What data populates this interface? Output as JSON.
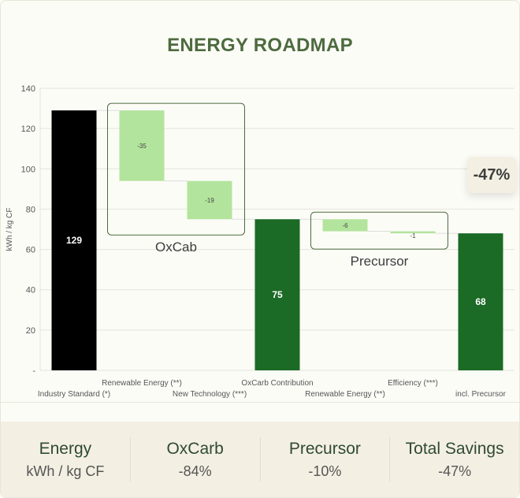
{
  "title": "ENERGY ROADMAP",
  "badge": "-47%",
  "chart_data": {
    "type": "bar",
    "subtype": "waterfall",
    "title": "ENERGY ROADMAP",
    "ylabel": "kWh / kg CF",
    "xlabel": "",
    "ylim": [
      0,
      140
    ],
    "yticks": [
      {
        "v": 0,
        "label": "-"
      },
      {
        "v": 20,
        "label": "20"
      },
      {
        "v": 40,
        "label": "40"
      },
      {
        "v": 60,
        "label": "60"
      },
      {
        "v": 80,
        "label": "80"
      },
      {
        "v": 100,
        "label": "100"
      },
      {
        "v": 120,
        "label": "120"
      },
      {
        "v": 140,
        "label": "140"
      }
    ],
    "grid": true,
    "bars": [
      {
        "category": "Industry Standard (*)",
        "kind": "total",
        "start": 0,
        "end": 129,
        "label": "129",
        "color": "#000000"
      },
      {
        "category": "Renewable Energy (**)",
        "kind": "delta",
        "start": 129,
        "end": 94,
        "label": "-35",
        "color": "#b3e49d"
      },
      {
        "category": "New Technology (***)",
        "kind": "delta",
        "start": 94,
        "end": 75,
        "label": "-19",
        "color": "#b3e49d"
      },
      {
        "category": "OxCarb Contribution",
        "kind": "total",
        "start": 0,
        "end": 75,
        "label": "75",
        "color": "#1b6a25"
      },
      {
        "category": "Renewable Energy (**)",
        "kind": "delta",
        "start": 75,
        "end": 69,
        "label": "-6",
        "color": "#b3e49d"
      },
      {
        "category": "Efficiency (***)",
        "kind": "delta",
        "start": 69,
        "end": 68,
        "label": "-1",
        "color": "#b3e49d"
      },
      {
        "category": "incl. Precursor",
        "kind": "total",
        "start": 0,
        "end": 68,
        "label": "68",
        "color": "#1b6a25"
      }
    ],
    "groups": [
      {
        "label": "OxCab",
        "from": 1,
        "to": 2
      },
      {
        "label": "Precursor",
        "from": 4,
        "to": 5
      }
    ]
  },
  "summary": [
    {
      "heading": "Energy",
      "value": "kWh / kg CF"
    },
    {
      "heading": "OxCarb",
      "value": "-84%"
    },
    {
      "heading": "Precursor",
      "value": "-10%"
    },
    {
      "heading": "Total Savings",
      "value": "-47%"
    }
  ]
}
